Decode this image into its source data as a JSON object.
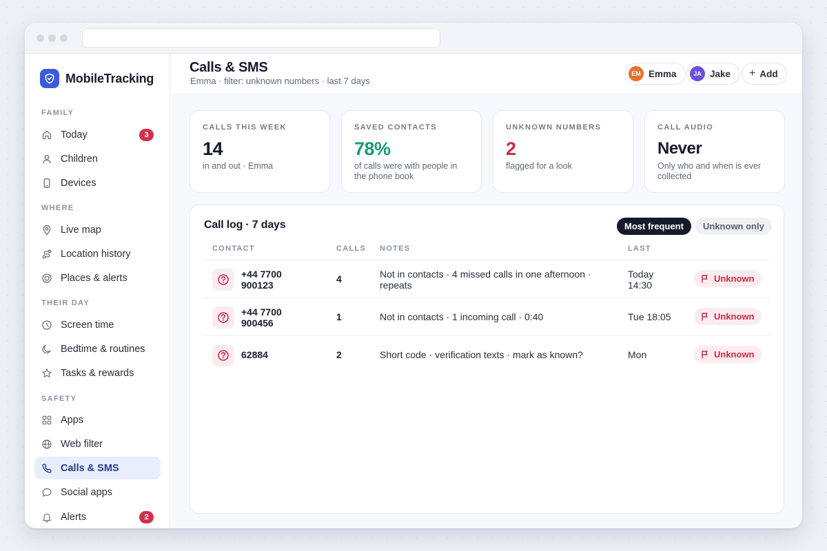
{
  "app": {
    "name": "MobileTracking",
    "accent": "#3b5bdb"
  },
  "sidebar": {
    "sections": [
      {
        "label": "FAMILY",
        "items": [
          {
            "label": "Today",
            "icon": "home-icon",
            "badge": "3"
          },
          {
            "label": "Children",
            "icon": "user-icon"
          },
          {
            "label": "Devices",
            "icon": "phone-icon"
          }
        ]
      },
      {
        "label": "WHERE",
        "items": [
          {
            "label": "Live map",
            "icon": "map-pin-icon"
          },
          {
            "label": "Location history",
            "icon": "route-icon"
          },
          {
            "label": "Places & alerts",
            "icon": "target-icon"
          }
        ]
      },
      {
        "label": "THEIR DAY",
        "items": [
          {
            "label": "Screen time",
            "icon": "clock-icon"
          },
          {
            "label": "Bedtime & routines",
            "icon": "moon-icon"
          },
          {
            "label": "Tasks & rewards",
            "icon": "star-icon"
          }
        ]
      },
      {
        "label": "SAFETY",
        "items": [
          {
            "label": "Apps",
            "icon": "grid-icon"
          },
          {
            "label": "Web filter",
            "icon": "globe-icon"
          },
          {
            "label": "Calls & SMS",
            "icon": "phone-call-icon",
            "active": true
          },
          {
            "label": "Social apps",
            "icon": "chat-icon"
          },
          {
            "label": "Alerts",
            "icon": "bell-icon",
            "badge": "2"
          }
        ]
      }
    ]
  },
  "header": {
    "title": "Calls & SMS",
    "subtitle": "Emma · filter: unknown numbers · last 7 days",
    "profiles": [
      {
        "initials": "EM",
        "name": "Emma",
        "color": "#e8702a"
      },
      {
        "initials": "JA",
        "name": "Jake",
        "color": "#6a4fe0"
      }
    ],
    "add_label": "Add"
  },
  "stats": [
    {
      "label": "CALLS THIS WEEK",
      "value": "14",
      "desc": "in and out · Emma",
      "color": "#16192a"
    },
    {
      "label": "SAVED CONTACTS",
      "value": "78%",
      "desc": "of calls were with people in the phone book",
      "color": "#1b9a7a"
    },
    {
      "label": "UNKNOWN NUMBERS",
      "value": "2",
      "desc": "flagged for a look",
      "color": "#c42d47"
    },
    {
      "label": "CALL AUDIO",
      "value": "Never",
      "desc": "Only who and when is ever collected",
      "color": "#16192a"
    }
  ],
  "call_log": {
    "title": "Call log · 7 days",
    "filters": {
      "active": "Most frequent",
      "inactive": "Unknown only"
    },
    "columns": {
      "contact": "CONTACT",
      "calls": "CALLS",
      "notes": "NOTES",
      "last": "LAST"
    },
    "rows": [
      {
        "contact": "+44 7700 900123",
        "calls": "4",
        "notes": "Not in contacts · 4 missed calls in one afternoon · repeats",
        "last": "Today 14:30",
        "tag": "Unknown"
      },
      {
        "contact": "+44 7700 900456",
        "calls": "1",
        "notes": "Not in contacts · 1 incoming call · 0:40",
        "last": "Tue 18:05",
        "tag": "Unknown"
      },
      {
        "contact": "62884",
        "calls": "2",
        "notes": "Short code · verification texts · mark as known?",
        "last": "Mon",
        "tag": "Unknown"
      }
    ]
  }
}
